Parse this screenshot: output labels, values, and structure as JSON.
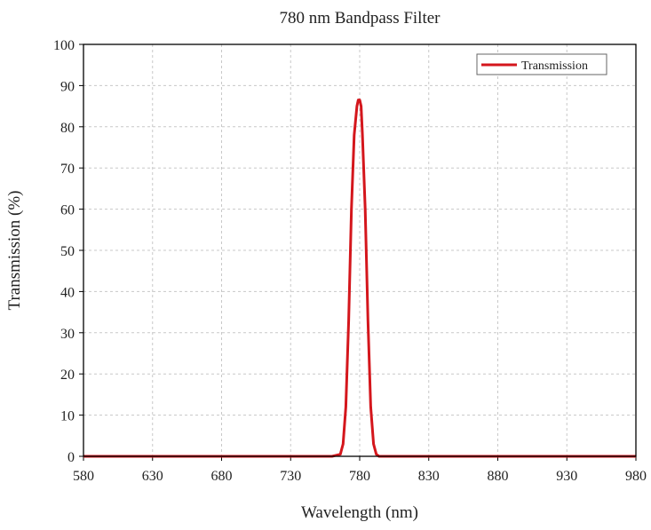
{
  "chart_data": {
    "type": "line",
    "title": "780 nm Bandpass Filter",
    "xlabel": "Wavelength (nm)",
    "ylabel": "Transmission (%)",
    "xlim": [
      580,
      980
    ],
    "ylim": [
      0,
      100
    ],
    "xticks": [
      "580",
      "630",
      "680",
      "730",
      "780",
      "830",
      "880",
      "930",
      "980"
    ],
    "yticks": [
      "0",
      "10",
      "20",
      "30",
      "40",
      "50",
      "60",
      "70",
      "80",
      "90",
      "100"
    ],
    "grid": true,
    "legend_position": "top-right",
    "series": [
      {
        "name": "Transmission",
        "color": "#d4161c",
        "x": [
          580,
          700,
          760,
          766,
          768,
          770,
          772,
          774,
          776,
          778,
          779,
          780,
          781,
          782,
          784,
          786,
          788,
          790,
          792,
          794,
          800,
          860,
          980
        ],
        "y": [
          0,
          0,
          0,
          0.5,
          3,
          12,
          33,
          60,
          78,
          85,
          86.5,
          86.5,
          85,
          78,
          60,
          33,
          12,
          3,
          0.5,
          0,
          0,
          0,
          0
        ]
      }
    ]
  }
}
